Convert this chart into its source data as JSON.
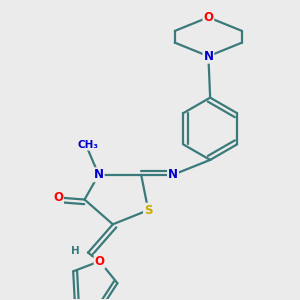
{
  "bg_color": "#ebebeb",
  "bond_color": "#3a7a7a",
  "atom_colors": {
    "O": "#ff0000",
    "N": "#0000cc",
    "S": "#ccaa00",
    "C": "#000000",
    "H": "#3a7a7a"
  },
  "line_width": 1.6,
  "font_size": 8.5,
  "fig_size": [
    3.0,
    3.0
  ],
  "dpi": 100
}
